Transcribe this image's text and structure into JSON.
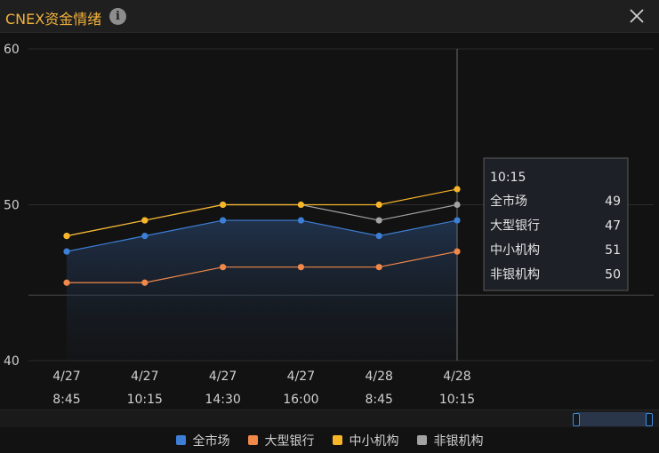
{
  "window": {
    "title": "CNEX资金情绪",
    "info_icon": "info-icon",
    "close_icon": "close-icon"
  },
  "chart_data": {
    "type": "line",
    "categories": [
      "4/27 8:45",
      "4/27 10:15",
      "4/27 14:30",
      "4/27 16:00",
      "4/28 8:45",
      "4/28 10:15"
    ],
    "category_lines": [
      [
        "4/27",
        "8:45"
      ],
      [
        "4/27",
        "10:15"
      ],
      [
        "4/27",
        "14:30"
      ],
      [
        "4/27",
        "16:00"
      ],
      [
        "4/28",
        "8:45"
      ],
      [
        "4/28",
        "10:15"
      ]
    ],
    "series": [
      {
        "name": "全市场",
        "color": "#3d7fd6",
        "values": [
          47,
          48,
          49,
          49,
          48,
          49
        ]
      },
      {
        "name": "大型银行",
        "color": "#f0884a",
        "values": [
          45,
          45,
          46,
          46,
          46,
          47
        ]
      },
      {
        "name": "中小机构",
        "color": "#f8b528",
        "values": [
          48,
          49,
          50,
          50,
          50,
          51
        ]
      },
      {
        "name": "非银机构",
        "color": "#a3a3a3",
        "values": [
          48,
          49,
          50,
          50,
          49,
          50
        ]
      }
    ],
    "ylim": [
      40,
      60
    ],
    "yticks": [
      40,
      50,
      60
    ],
    "area_series": "全市场",
    "reference_line_y": 44.2,
    "tooltip": {
      "title": "10:15",
      "rows": [
        {
          "name": "全市场",
          "value": "49"
        },
        {
          "name": "大型银行",
          "value": "47"
        },
        {
          "name": "中小机构",
          "value": "51"
        },
        {
          "name": "非银机构",
          "value": "50"
        }
      ]
    },
    "crosshair_category": "4/28 10:15",
    "legend_position": "bottom"
  },
  "legend": {
    "items": [
      {
        "name": "全市场",
        "color": "#3d7fd6"
      },
      {
        "name": "大型银行",
        "color": "#f0884a"
      },
      {
        "name": "中小机构",
        "color": "#f8b528"
      },
      {
        "name": "非银机构",
        "color": "#a3a3a3"
      }
    ]
  }
}
